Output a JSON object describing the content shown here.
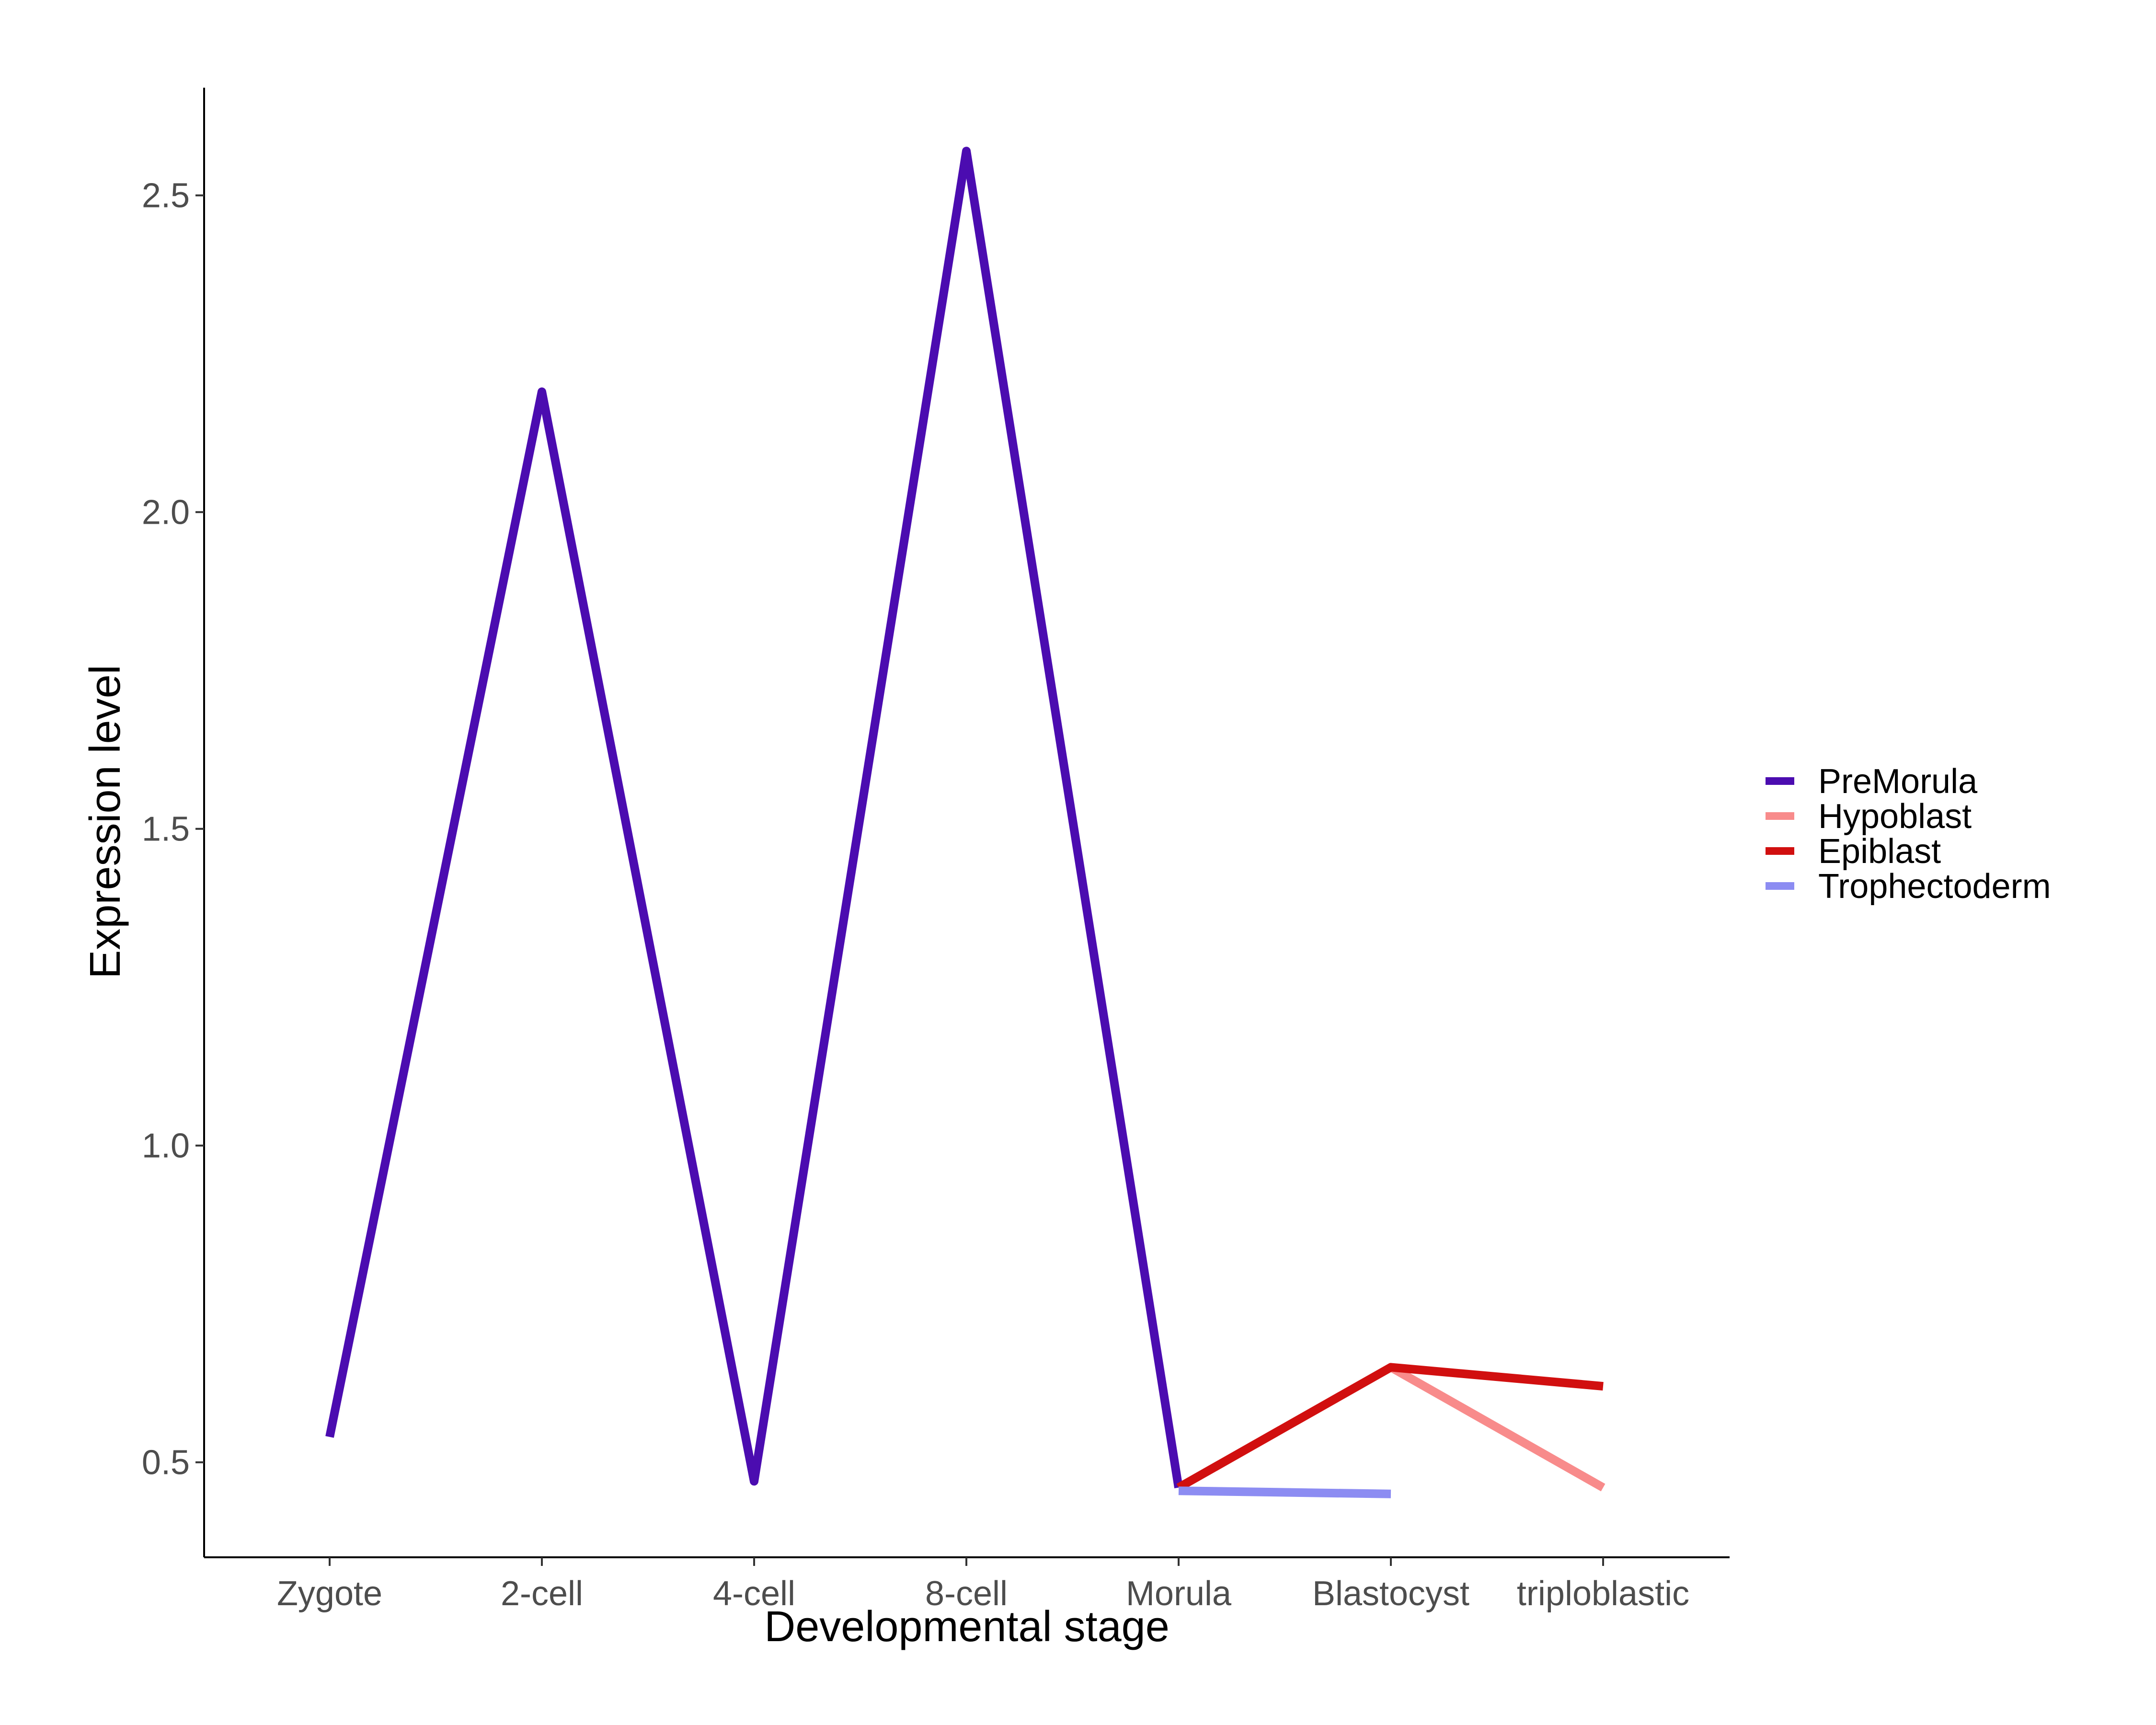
{
  "chart_data": {
    "type": "line",
    "title": "",
    "xlabel": "Developmental stage",
    "ylabel": "Expression level",
    "categories": [
      "Zygote",
      "2-cell",
      "4-cell",
      "8-cell",
      "Morula",
      "Blastocyst",
      "triploblastic"
    ],
    "ylim": [
      0.35,
      2.67
    ],
    "yticks": [
      "0.5",
      "1.0",
      "1.5",
      "2.0",
      "2.5"
    ],
    "grid": false,
    "legend_position": "right",
    "series": [
      {
        "name": "PreMorula",
        "color": "#4B0CB0",
        "values": [
          0.54,
          2.19,
          0.47,
          2.57,
          0.46,
          null,
          null
        ]
      },
      {
        "name": "Hypoblast",
        "color": "#F88B8B",
        "values": [
          null,
          null,
          null,
          null,
          null,
          0.65,
          0.46
        ]
      },
      {
        "name": "Epiblast",
        "color": "#D10F0F",
        "values": [
          null,
          null,
          null,
          null,
          0.46,
          0.65,
          0.62
        ]
      },
      {
        "name": "Trophectoderm",
        "color": "#8C8CF2",
        "values": [
          null,
          null,
          null,
          null,
          0.455,
          0.45,
          null
        ]
      }
    ]
  }
}
